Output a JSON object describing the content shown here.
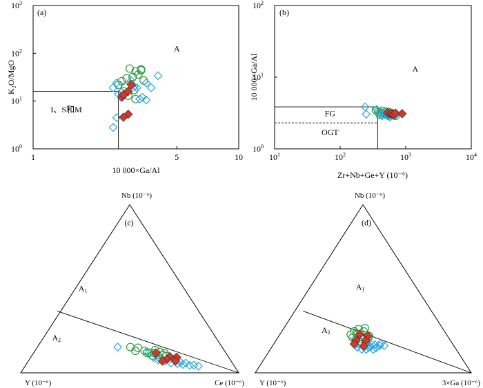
{
  "chart_data": [
    {
      "id": "a",
      "type": "scatter",
      "panel_label": "(a)",
      "xlabel": "10 000×Ga/Al",
      "ylabel": "K₂O/MgO",
      "x_scale": "log",
      "y_scale": "log",
      "xlim": [
        1,
        10
      ],
      "ylim": [
        1,
        1000
      ],
      "x_ticks": [
        {
          "value": 1,
          "label": "1"
        },
        {
          "value": 5,
          "label": "5"
        },
        {
          "value": 10,
          "label": "10"
        }
      ],
      "y_ticks": [
        {
          "value": 1,
          "base": "10",
          "exp": "0"
        },
        {
          "value": 10,
          "base": "10",
          "exp": "1"
        },
        {
          "value": 100,
          "base": "10",
          "exp": "2"
        },
        {
          "value": 1000,
          "base": "10",
          "exp": "3"
        }
      ],
      "region_labels": [
        {
          "text": "A",
          "x": 5.0,
          "y": 110
        },
        {
          "text": "I、S和M",
          "x": 1.45,
          "y": 5.8
        }
      ],
      "boundaries": [
        {
          "x": [
            1,
            2.6
          ],
          "y": [
            16,
            16
          ]
        },
        {
          "x": [
            2.6,
            2.6
          ],
          "y": [
            1,
            16
          ]
        }
      ],
      "series": [
        {
          "marker": "circle",
          "points": [
            [
              2.7,
              26
            ],
            [
              2.85,
              30
            ],
            [
              3.05,
              32
            ],
            [
              3.35,
              44
            ],
            [
              3.15,
              42
            ],
            [
              2.95,
              48
            ],
            [
              3.25,
              36
            ],
            [
              2.6,
              22
            ],
            [
              2.8,
              20
            ],
            [
              3.1,
              17
            ],
            [
              2.9,
              13
            ],
            [
              3.15,
              11
            ],
            [
              2.75,
              16
            ],
            [
              3.45,
              27
            ],
            [
              3.35,
              46
            ]
          ]
        },
        {
          "marker": "diamond",
          "points": [
            [
              2.55,
              24
            ],
            [
              2.45,
              19
            ],
            [
              2.6,
              14
            ],
            [
              2.7,
              13
            ],
            [
              2.85,
              15
            ],
            [
              3.0,
              27
            ],
            [
              3.2,
              19
            ],
            [
              3.4,
              12
            ],
            [
              3.55,
              10.5
            ],
            [
              3.3,
              11
            ],
            [
              3.75,
              19
            ],
            [
              4.05,
              34
            ],
            [
              2.45,
              2.8
            ],
            [
              2.55,
              4.5
            ],
            [
              3.1,
              20
            ],
            [
              3.55,
              24
            ]
          ]
        },
        {
          "marker": "red-diamond",
          "points": [
            [
              3.0,
              22
            ],
            [
              2.9,
              16
            ],
            [
              2.7,
              12
            ],
            [
              2.75,
              13.5
            ],
            [
              2.9,
              5.3
            ],
            [
              2.75,
              4.6
            ]
          ]
        }
      ]
    },
    {
      "id": "b",
      "type": "scatter",
      "panel_label": "(b)",
      "xlabel": "Zr+Nb+Ge+Y (10⁻⁶)",
      "ylabel": "10 000×Ga/Al",
      "x_scale": "log",
      "y_scale": "log",
      "xlim": [
        10,
        10000
      ],
      "ylim": [
        1,
        100
      ],
      "x_ticks": [
        {
          "value": 10,
          "base": "10",
          "exp": "1"
        },
        {
          "value": 100,
          "base": "10",
          "exp": "2"
        },
        {
          "value": 1000,
          "base": "10",
          "exp": "3"
        },
        {
          "value": 10000,
          "base": "10",
          "exp": "4"
        }
      ],
      "y_ticks": [
        {
          "value": 1,
          "base": "10",
          "exp": "0"
        },
        {
          "value": 10,
          "base": "10",
          "exp": "1"
        },
        {
          "value": 100,
          "base": "10",
          "exp": "2"
        }
      ],
      "region_labels": [
        {
          "text": "A",
          "x": 1400,
          "y": 12
        },
        {
          "text": "FG",
          "x": 70,
          "y": 2.85
        },
        {
          "text": "OGT",
          "x": 70,
          "y": 1.55
        }
      ],
      "boundaries": [
        {
          "x": [
            10,
            375
          ],
          "y": [
            3.85,
            3.85
          ]
        },
        {
          "x": [
            375,
            375
          ],
          "y": [
            1,
            3.85
          ]
        }
      ],
      "dashed_boundaries": [
        {
          "x": [
            10,
            375
          ],
          "y": [
            2.3,
            2.3
          ]
        }
      ],
      "series": [
        {
          "marker": "circle",
          "points": [
            [
              350,
              3.45
            ],
            [
              380,
              3.3
            ],
            [
              420,
              3.2
            ],
            [
              470,
              3.1
            ],
            [
              520,
              3.0
            ],
            [
              560,
              3.1
            ],
            [
              600,
              3.0
            ],
            [
              440,
              3.4
            ],
            [
              500,
              3.3
            ],
            [
              560,
              3.25
            ],
            [
              620,
              3.15
            ],
            [
              680,
              3.05
            ],
            [
              400,
              3.0
            ],
            [
              650,
              2.95
            ],
            [
              700,
              2.9
            ]
          ]
        },
        {
          "marker": "diamond",
          "points": [
            [
              240,
              3.85
            ],
            [
              250,
              3.05
            ],
            [
              360,
              3.55
            ],
            [
              390,
              3.25
            ],
            [
              420,
              2.95
            ],
            [
              440,
              2.9
            ],
            [
              470,
              3.05
            ],
            [
              500,
              2.95
            ],
            [
              540,
              2.85
            ],
            [
              580,
              2.8
            ],
            [
              620,
              2.95
            ],
            [
              660,
              2.9
            ],
            [
              700,
              3.0
            ],
            [
              520,
              3.2
            ],
            [
              450,
              3.15
            ],
            [
              600,
              3.1
            ]
          ]
        },
        {
          "marker": "red-diamond",
          "points": [
            [
              530,
              3.2
            ],
            [
              580,
              3.1
            ],
            [
              620,
              3.05
            ],
            [
              660,
              3.0
            ],
            [
              700,
              3.15
            ],
            [
              880,
              3.1
            ]
          ]
        }
      ]
    },
    {
      "id": "c",
      "type": "ternary",
      "panel_label": "(c)",
      "apex_labels": {
        "top": "Nb (10⁻⁶)",
        "left": "Y (10⁻⁶)",
        "right": "Ce (10⁻⁶)"
      },
      "region_labels": [
        {
          "text": "A",
          "sub": "1",
          "u": 0.285,
          "v": 0.486
        },
        {
          "text": "A",
          "sub": "2",
          "u": 0.164,
          "v": 0.193
        }
      ],
      "divider": [
        [
          0.168,
          0.367
        ],
        [
          1.0,
          0.0
        ]
      ],
      "series": [
        {
          "marker": "circle",
          "points": [
            [
              0.503,
              0.153
            ],
            [
              0.538,
              0.149
            ],
            [
              0.568,
              0.131
            ],
            [
              0.591,
              0.12
            ],
            [
              0.614,
              0.117
            ],
            [
              0.628,
              0.106
            ],
            [
              0.652,
              0.106
            ],
            [
              0.639,
              0.124
            ],
            [
              0.667,
              0.1
            ],
            [
              0.69,
              0.085
            ],
            [
              0.617,
              0.135
            ],
            [
              0.579,
              0.118
            ],
            [
              0.603,
              0.102
            ],
            [
              0.66,
              0.116
            ],
            [
              0.526,
              0.131
            ]
          ]
        },
        {
          "marker": "diamond",
          "points": [
            [
              0.445,
              0.153
            ],
            [
              0.578,
              0.127
            ],
            [
              0.608,
              0.091
            ],
            [
              0.637,
              0.085
            ],
            [
              0.663,
              0.07
            ],
            [
              0.69,
              0.059
            ],
            [
              0.719,
              0.055
            ],
            [
              0.744,
              0.05
            ],
            [
              0.775,
              0.045
            ],
            [
              0.815,
              0.04
            ],
            [
              0.708,
              0.073
            ],
            [
              0.733,
              0.062
            ],
            [
              0.672,
              0.082
            ],
            [
              0.631,
              0.076
            ],
            [
              0.757,
              0.058
            ],
            [
              0.794,
              0.046
            ]
          ]
        },
        {
          "marker": "red-diamond",
          "points": [
            [
              0.62,
              0.118
            ],
            [
              0.684,
              0.097
            ],
            [
              0.669,
              0.08
            ],
            [
              0.715,
              0.093
            ],
            [
              0.65,
              0.07
            ],
            [
              0.71,
              0.07
            ]
          ]
        }
      ]
    },
    {
      "id": "d",
      "type": "ternary",
      "panel_label": "(d)",
      "apex_labels": {
        "top": "Nb (10⁻⁶)",
        "left": "Y (10⁻⁶)",
        "right": "3×Ga (10⁻⁶)"
      },
      "region_labels": [
        {
          "text": "A",
          "sub": "1",
          "u": 0.486,
          "v": 0.493
        },
        {
          "text": "A",
          "sub": "2",
          "u": 0.327,
          "v": 0.237
        }
      ],
      "divider": [
        [
          0.222,
          0.367
        ],
        [
          1.0,
          0.0
        ]
      ],
      "series": [
        {
          "marker": "circle",
          "points": [
            [
              0.458,
              0.247
            ],
            [
              0.478,
              0.26
            ],
            [
              0.498,
              0.227
            ],
            [
              0.464,
              0.194
            ],
            [
              0.489,
              0.202
            ],
            [
              0.512,
              0.183
            ],
            [
              0.527,
              0.219
            ],
            [
              0.469,
              0.234
            ],
            [
              0.502,
              0.246
            ],
            [
              0.451,
              0.21
            ],
            [
              0.482,
              0.174
            ],
            [
              0.52,
              0.201
            ],
            [
              0.508,
              0.265
            ],
            [
              0.442,
              0.228
            ],
            [
              0.493,
              0.215
            ]
          ]
        },
        {
          "marker": "diamond",
          "points": [
            [
              0.472,
              0.152
            ],
            [
              0.493,
              0.14
            ],
            [
              0.513,
              0.139
            ],
            [
              0.534,
              0.155
            ],
            [
              0.555,
              0.167
            ],
            [
              0.576,
              0.161
            ],
            [
              0.559,
              0.148
            ],
            [
              0.538,
              0.17
            ],
            [
              0.517,
              0.166
            ],
            [
              0.488,
              0.182
            ],
            [
              0.58,
              0.174
            ],
            [
              0.597,
              0.161
            ],
            [
              0.462,
              0.166
            ],
            [
              0.546,
              0.139
            ],
            [
              0.524,
              0.15
            ],
            [
              0.501,
              0.158
            ]
          ]
        },
        {
          "marker": "red-diamond",
          "points": [
            [
              0.484,
              0.229
            ],
            [
              0.522,
              0.22
            ],
            [
              0.467,
              0.193
            ],
            [
              0.511,
              0.191
            ],
            [
              0.458,
              0.172
            ],
            [
              0.502,
              0.16
            ]
          ]
        }
      ]
    }
  ]
}
